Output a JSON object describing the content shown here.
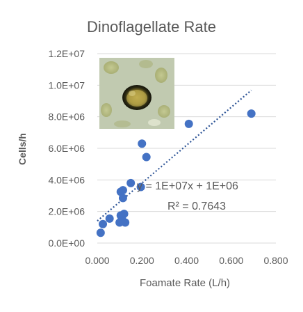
{
  "colors": {
    "marker": "#4472c4",
    "trendline": "#2e5597",
    "grid": "#d9d9d9",
    "text": "#595959",
    "background": "#ffffff"
  },
  "chart_data": {
    "type": "scatter",
    "title": "Dinoflagellate Rate",
    "xlabel": "Foamate Rate  (L/h)",
    "ylabel": "Cells/h",
    "xlim": [
      0,
      0.8
    ],
    "ylim": [
      0,
      12000000
    ],
    "x_ticks": [
      0,
      0.2,
      0.4,
      0.6,
      0.8
    ],
    "x_tick_labels": [
      "0.000",
      "0.200",
      "0.400",
      "0.600",
      "0.800"
    ],
    "y_ticks": [
      0,
      2000000,
      4000000,
      6000000,
      8000000,
      10000000,
      12000000
    ],
    "y_tick_labels": [
      "0.0E+00",
      "2.0E+06",
      "4.0E+06",
      "6.0E+06",
      "8.0E+06",
      "1.0E+07",
      "1.2E+07"
    ],
    "grid": "horizontal",
    "legend": "none",
    "series": [
      {
        "x": [
          0.015,
          0.025,
          0.055,
          0.1,
          0.105,
          0.11,
          0.12,
          0.115,
          0.125,
          0.105,
          0.115,
          0.15,
          0.195,
          0.2,
          0.22,
          0.41,
          0.69
        ],
        "y": [
          650000,
          1200000,
          1550000,
          1300000,
          1750000,
          1600000,
          1850000,
          2850000,
          1300000,
          3250000,
          3350000,
          3800000,
          3550000,
          6300000,
          5450000,
          7550000,
          8200000
        ]
      }
    ],
    "trendline": {
      "type": "linear",
      "slope": 12000000,
      "intercept": 1400000,
      "x_range": [
        0,
        0.69
      ],
      "equation_label": "y = 1E+07x + 1E+06",
      "r2_label": "R² = 0.7643"
    },
    "inset_image": "dinoflagellate-micrograph"
  }
}
